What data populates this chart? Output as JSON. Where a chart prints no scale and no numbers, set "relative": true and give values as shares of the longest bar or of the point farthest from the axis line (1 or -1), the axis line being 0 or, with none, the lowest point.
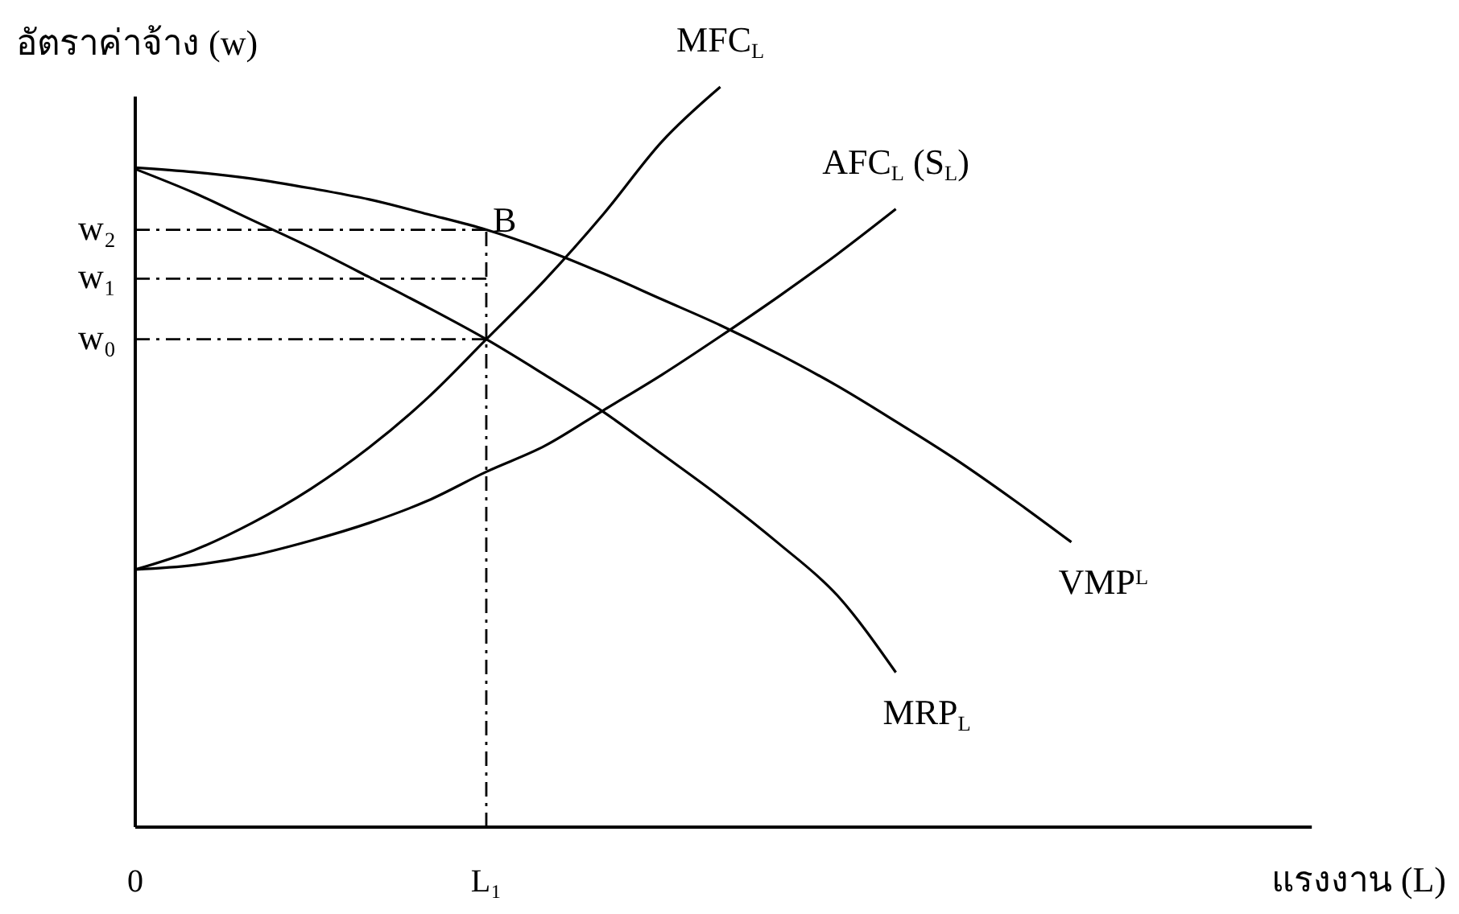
{
  "chart_data": {
    "type": "line",
    "relative": true,
    "xlabel": "แรงงาน (L)",
    "ylabel": "อัตราค่าจ้าง (w)",
    "categories": [
      "0",
      null,
      null,
      null,
      null,
      null,
      "L₁",
      null,
      null,
      null,
      null,
      null,
      null,
      null,
      null,
      null,
      null,
      null,
      null,
      null,
      null
    ],
    "series": [
      {
        "name": "MFC$_{L}$",
        "color": "#000000",
        "values": [
          0.348,
          0.374,
          0.411,
          0.457,
          0.513,
          0.58,
          0.659,
          0.739,
          0.828,
          0.926,
          1.0,
          null,
          null,
          null,
          null,
          null,
          null,
          null,
          null,
          null,
          null
        ]
      },
      {
        "name": "AFC$_{L}$ (S$_{L}$)",
        "color": "#000000",
        "values": [
          0.348,
          0.354,
          0.367,
          0.387,
          0.411,
          0.441,
          0.48,
          0.515,
          0.563,
          0.611,
          0.663,
          0.717,
          0.774,
          0.835,
          null,
          null,
          null,
          null,
          null,
          null,
          null
        ]
      },
      {
        "name": "VMP$^{L}$",
        "color": "#000000",
        "values": [
          0.891,
          0.885,
          0.876,
          0.863,
          0.848,
          0.828,
          0.807,
          0.78,
          0.748,
          0.713,
          0.678,
          0.639,
          0.596,
          0.548,
          0.498,
          0.443,
          0.385,
          null,
          null,
          null,
          null
        ]
      },
      {
        "name": "MRP$_{L}$",
        "color": "#000000",
        "values": [
          0.889,
          0.857,
          0.82,
          0.783,
          0.743,
          0.702,
          0.659,
          0.611,
          0.561,
          0.504,
          0.446,
          0.383,
          0.313,
          0.209,
          null,
          null,
          null,
          null,
          null,
          null,
          null
        ]
      }
    ],
    "ref_lines": [
      {
        "axis": "y",
        "value": 0.807,
        "label": "w₂",
        "line_style": "dashed"
      },
      {
        "axis": "y",
        "value": 0.741,
        "label": "w₁",
        "line_style": "dashed"
      },
      {
        "axis": "y",
        "value": 0.659,
        "label": "w₀",
        "line_style": "dashed"
      },
      {
        "axis": "x",
        "value": "L₁",
        "line_style": "dashed"
      }
    ],
    "annotations": [
      {
        "text": "B",
        "x": "L₁",
        "y": 0.807
      }
    ],
    "legend": false,
    "grid": false,
    "marker": "none",
    "line_style": "solid"
  }
}
